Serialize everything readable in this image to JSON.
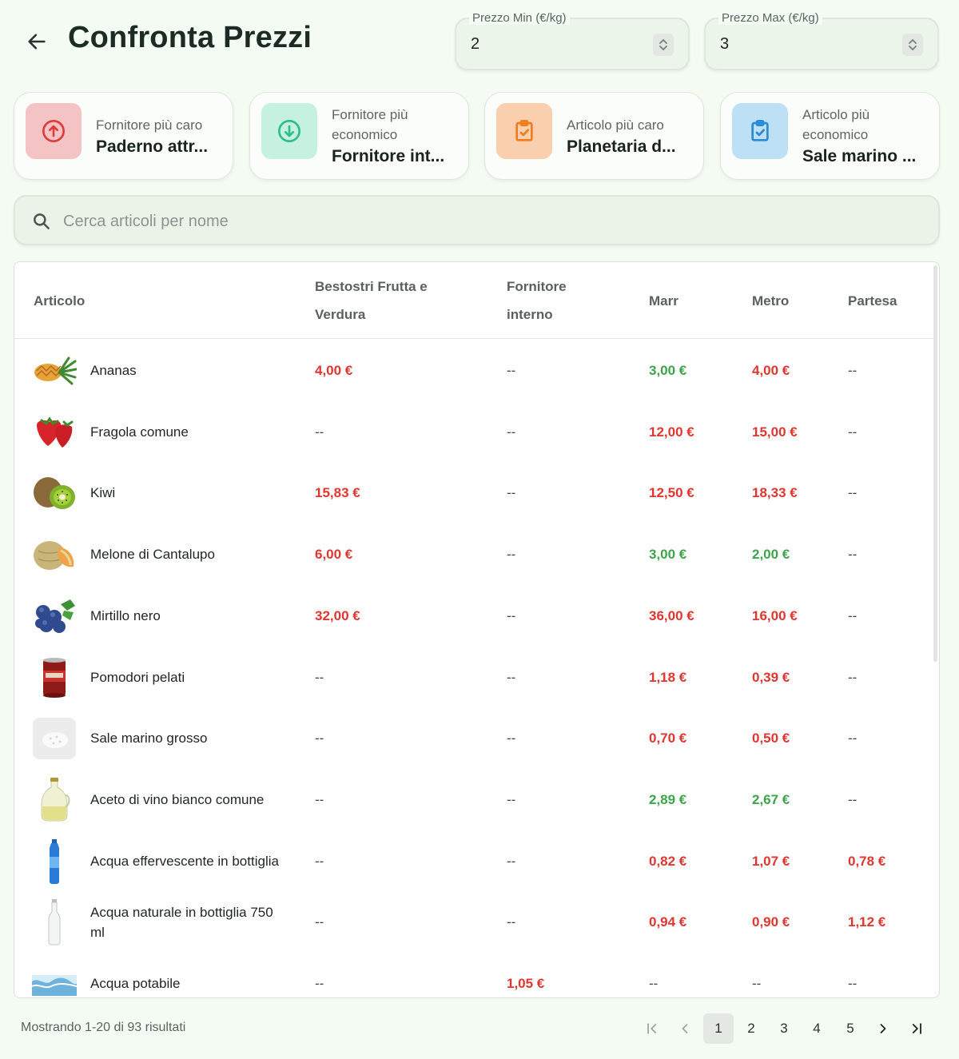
{
  "header": {
    "title": "Confronta Prezzi",
    "min_price": {
      "label": "Prezzo Min (€/kg)",
      "value": "2"
    },
    "max_price": {
      "label": "Prezzo Max (€/kg)",
      "value": "3"
    }
  },
  "cards": [
    {
      "label": "Fornitore più caro",
      "value": "Paderno attr...",
      "icon": "arrow-up-circle-icon",
      "color": "#f4c4c4",
      "icon_color": "#e03b3b"
    },
    {
      "label": "Fornitore più economico",
      "value": "Fornitore int...",
      "icon": "arrow-down-circle-icon",
      "color": "#c6f0e0",
      "icon_color": "#2bbf8b"
    },
    {
      "label": "Articolo più caro",
      "value": "Planetaria d...",
      "icon": "clipboard-check-icon",
      "color": "#f9cfae",
      "icon_color": "#ef7d1e"
    },
    {
      "label": "Articolo più economico",
      "value": "Sale marino ...",
      "icon": "clipboard-check-icon",
      "color": "#bde0f4",
      "icon_color": "#2a8ad6"
    }
  ],
  "search": {
    "placeholder": "Cerca articoli per nome"
  },
  "table": {
    "headers": [
      "Articolo",
      "Bestostri Frutta e Verdura",
      "Fornitore interno",
      "Marr",
      "Metro",
      "Partesa"
    ],
    "rows": [
      {
        "name": "Ananas",
        "img": "pineapple",
        "prices": [
          {
            "v": "4,00 €",
            "s": "red"
          },
          {
            "v": "--",
            "s": "none"
          },
          {
            "v": "3,00 €",
            "s": "green"
          },
          {
            "v": "4,00 €",
            "s": "red"
          },
          {
            "v": "--",
            "s": "none"
          }
        ]
      },
      {
        "name": "Fragola comune",
        "img": "strawberry",
        "prices": [
          {
            "v": "--",
            "s": "none"
          },
          {
            "v": "--",
            "s": "none"
          },
          {
            "v": "12,00 €",
            "s": "red"
          },
          {
            "v": "15,00 €",
            "s": "red"
          },
          {
            "v": "--",
            "s": "none"
          }
        ]
      },
      {
        "name": "Kiwi",
        "img": "kiwi",
        "prices": [
          {
            "v": "15,83 €",
            "s": "red"
          },
          {
            "v": "--",
            "s": "none"
          },
          {
            "v": "12,50 €",
            "s": "red"
          },
          {
            "v": "18,33 €",
            "s": "red"
          },
          {
            "v": "--",
            "s": "none"
          }
        ]
      },
      {
        "name": "Melone di Cantalupo",
        "img": "melon",
        "prices": [
          {
            "v": "6,00 €",
            "s": "red"
          },
          {
            "v": "--",
            "s": "none"
          },
          {
            "v": "3,00 €",
            "s": "green"
          },
          {
            "v": "2,00 €",
            "s": "green"
          },
          {
            "v": "--",
            "s": "none"
          }
        ]
      },
      {
        "name": "Mirtillo nero",
        "img": "blueberry",
        "prices": [
          {
            "v": "32,00 €",
            "s": "red"
          },
          {
            "v": "--",
            "s": "none"
          },
          {
            "v": "36,00 €",
            "s": "red"
          },
          {
            "v": "16,00 €",
            "s": "red"
          },
          {
            "v": "--",
            "s": "none"
          }
        ]
      },
      {
        "name": "Pomodori pelati",
        "img": "can",
        "prices": [
          {
            "v": "--",
            "s": "none"
          },
          {
            "v": "--",
            "s": "none"
          },
          {
            "v": "1,18 €",
            "s": "red"
          },
          {
            "v": "0,39 €",
            "s": "red"
          },
          {
            "v": "--",
            "s": "none"
          }
        ]
      },
      {
        "name": "Sale marino grosso",
        "img": "salt",
        "prices": [
          {
            "v": "--",
            "s": "none"
          },
          {
            "v": "--",
            "s": "none"
          },
          {
            "v": "0,70 €",
            "s": "red"
          },
          {
            "v": "0,50 €",
            "s": "red"
          },
          {
            "v": "--",
            "s": "none"
          }
        ]
      },
      {
        "name": "Aceto di vino bianco comune",
        "img": "vinegar",
        "prices": [
          {
            "v": "--",
            "s": "none"
          },
          {
            "v": "--",
            "s": "none"
          },
          {
            "v": "2,89 €",
            "s": "green"
          },
          {
            "v": "2,67 €",
            "s": "green"
          },
          {
            "v": "--",
            "s": "none"
          }
        ]
      },
      {
        "name": "Acqua effervescente in bottiglia",
        "img": "blue-bottle",
        "prices": [
          {
            "v": "--",
            "s": "none"
          },
          {
            "v": "--",
            "s": "none"
          },
          {
            "v": "0,82 €",
            "s": "red"
          },
          {
            "v": "1,07 €",
            "s": "red"
          },
          {
            "v": "0,78 €",
            "s": "red"
          }
        ]
      },
      {
        "name": "Acqua naturale in bottiglia 750 ml",
        "img": "glass-bottle",
        "prices": [
          {
            "v": "--",
            "s": "none"
          },
          {
            "v": "--",
            "s": "none"
          },
          {
            "v": "0,94 €",
            "s": "red"
          },
          {
            "v": "0,90 €",
            "s": "red"
          },
          {
            "v": "1,12 €",
            "s": "red"
          }
        ]
      },
      {
        "name": "Acqua potabile",
        "img": "water",
        "prices": [
          {
            "v": "--",
            "s": "none"
          },
          {
            "v": "1,05 €",
            "s": "red"
          },
          {
            "v": "--",
            "s": "none"
          },
          {
            "v": "--",
            "s": "none"
          },
          {
            "v": "--",
            "s": "none"
          }
        ]
      }
    ]
  },
  "footer": {
    "results": "Mostrando 1-20 di 93 risultati",
    "pages": [
      "1",
      "2",
      "3",
      "4",
      "5"
    ],
    "current_page": "1"
  },
  "colors": {
    "price_high": "#e0362f",
    "price_low": "#3da44a",
    "background": "#f3fbf2"
  }
}
